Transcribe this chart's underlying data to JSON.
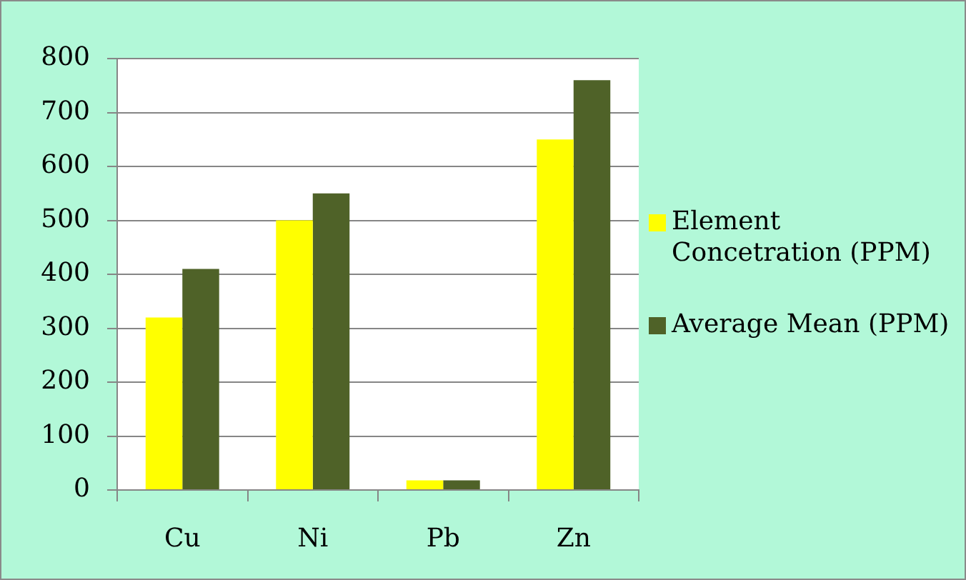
{
  "chart_data": {
    "type": "bar",
    "categories": [
      "Cu",
      "Ni",
      "Pb",
      "Zn"
    ],
    "series": [
      {
        "name": "Element Concetration (PPM)",
        "color": "#ffff00",
        "values": [
          320,
          500,
          18,
          650
        ]
      },
      {
        "name": "Average Mean (PPM)",
        "color": "#4f6228",
        "values": [
          410,
          550,
          18,
          760
        ]
      }
    ],
    "ylim": [
      0,
      800
    ],
    "yticks": [
      0,
      100,
      200,
      300,
      400,
      500,
      600,
      700,
      800
    ],
    "grid": "y",
    "legend": "right"
  }
}
